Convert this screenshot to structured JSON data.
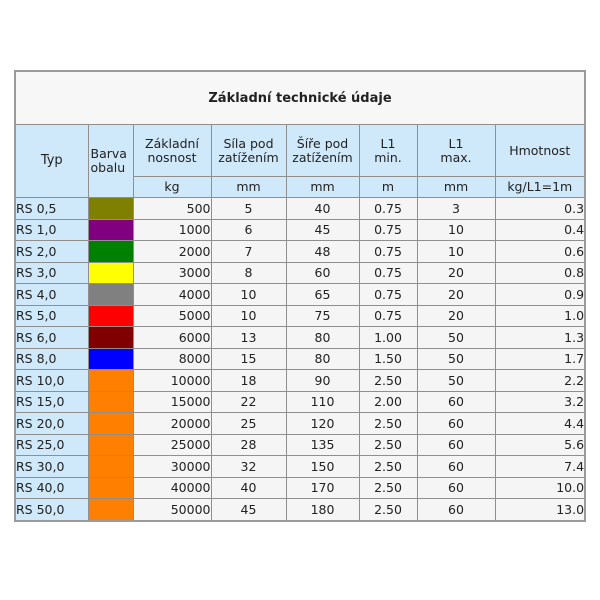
{
  "table": {
    "title": "Základní technické údaje",
    "headers": {
      "typ": "Typ",
      "barva": "Barva obalu",
      "nosnost": "Základní nosnost",
      "sila": "Síla pod zatížením",
      "sire": "Šíře pod zatížením",
      "l1min": "L1 min.",
      "l1max": "L1 max.",
      "hmotnost": "Hmotnost"
    },
    "units": {
      "nosnost": "kg",
      "sila": "mm",
      "sire": "mm",
      "l1min": "m",
      "l1max": "mm",
      "hmotnost": "kg/L1=1m"
    },
    "rows": [
      {
        "typ": "RS 0,5",
        "color": "#808000",
        "nosnost": "500",
        "sila": "5",
        "sire": "40",
        "l1min": "0.75",
        "l1max": "3",
        "hmotnost": "0.3"
      },
      {
        "typ": "RS 1,0",
        "color": "#800080",
        "nosnost": "1000",
        "sila": "6",
        "sire": "45",
        "l1min": "0.75",
        "l1max": "10",
        "hmotnost": "0.4"
      },
      {
        "typ": "RS 2,0",
        "color": "#008000",
        "nosnost": "2000",
        "sila": "7",
        "sire": "48",
        "l1min": "0.75",
        "l1max": "10",
        "hmotnost": "0.6"
      },
      {
        "typ": "RS 3,0",
        "color": "#ffff00",
        "nosnost": "3000",
        "sila": "8",
        "sire": "60",
        "l1min": "0.75",
        "l1max": "20",
        "hmotnost": "0.8"
      },
      {
        "typ": "RS 4,0",
        "color": "#808080",
        "nosnost": "4000",
        "sila": "10",
        "sire": "65",
        "l1min": "0.75",
        "l1max": "20",
        "hmotnost": "0.9"
      },
      {
        "typ": "RS 5,0",
        "color": "#ff0000",
        "nosnost": "5000",
        "sila": "10",
        "sire": "75",
        "l1min": "0.75",
        "l1max": "20",
        "hmotnost": "1.0"
      },
      {
        "typ": "RS 6,0",
        "color": "#800000",
        "nosnost": "6000",
        "sila": "13",
        "sire": "80",
        "l1min": "1.00",
        "l1max": "50",
        "hmotnost": "1.3"
      },
      {
        "typ": "RS 8,0",
        "color": "#0000ff",
        "nosnost": "8000",
        "sila": "15",
        "sire": "80",
        "l1min": "1.50",
        "l1max": "50",
        "hmotnost": "1.7"
      },
      {
        "typ": "RS 10,0",
        "color": "#ff8000",
        "nosnost": "10000",
        "sila": "18",
        "sire": "90",
        "l1min": "2.50",
        "l1max": "50",
        "hmotnost": "2.2"
      },
      {
        "typ": "RS 15,0",
        "color": "#ff8000",
        "nosnost": "15000",
        "sila": "22",
        "sire": "110",
        "l1min": "2.00",
        "l1max": "60",
        "hmotnost": "3.2"
      },
      {
        "typ": "RS 20,0",
        "color": "#ff8000",
        "nosnost": "20000",
        "sila": "25",
        "sire": "120",
        "l1min": "2.50",
        "l1max": "60",
        "hmotnost": "4.4"
      },
      {
        "typ": "RS 25,0",
        "color": "#ff8000",
        "nosnost": "25000",
        "sila": "28",
        "sire": "135",
        "l1min": "2.50",
        "l1max": "60",
        "hmotnost": "5.6"
      },
      {
        "typ": "RS 30,0",
        "color": "#ff8000",
        "nosnost": "30000",
        "sila": "32",
        "sire": "150",
        "l1min": "2.50",
        "l1max": "60",
        "hmotnost": "7.4"
      },
      {
        "typ": "RS 40,0",
        "color": "#ff8000",
        "nosnost": "40000",
        "sila": "40",
        "sire": "170",
        "l1min": "2.50",
        "l1max": "60",
        "hmotnost": "10.0"
      },
      {
        "typ": "RS 50,0",
        "color": "#ff8000",
        "nosnost": "50000",
        "sila": "45",
        "sire": "180",
        "l1min": "2.50",
        "l1max": "60",
        "hmotnost": "13.0"
      }
    ]
  }
}
